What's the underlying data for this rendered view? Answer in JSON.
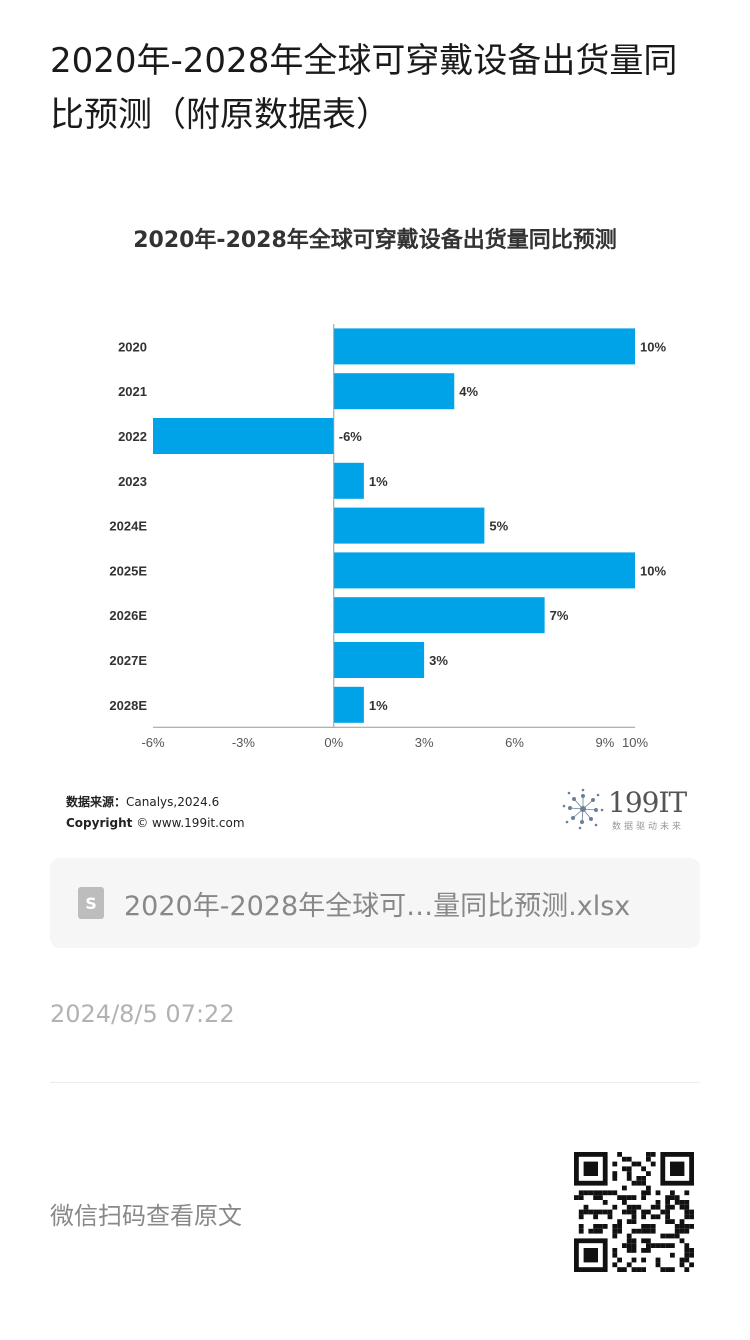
{
  "page_title": "2020年-2028年全球可穿戴设备出货量同比预测（附原数据表）",
  "chart": {
    "title": "2020年-2028年全球可穿戴设备出货量同比预测",
    "source_label": "数据来源：",
    "source_value": "Canalys,2024.6",
    "copyright_label": "Copyright",
    "copyright_value": "© www.199it.com",
    "bar_color": "#00A2E8"
  },
  "chart_data": {
    "type": "bar",
    "orientation": "horizontal",
    "title": "2020年-2028年全球可穿戴设备出货量同比预测",
    "categories": [
      "2020",
      "2021",
      "2022",
      "2023",
      "2024E",
      "2025E",
      "2026E",
      "2027E",
      "2028E"
    ],
    "values": [
      10,
      4,
      -6,
      1,
      5,
      10,
      7,
      3,
      1
    ],
    "value_labels": [
      "10%",
      "4%",
      "-6%",
      "1%",
      "5%",
      "10%",
      "7%",
      "3%",
      "1%"
    ],
    "x_ticks": [
      -6,
      -3,
      0,
      3,
      6,
      9,
      10
    ],
    "x_tick_labels": [
      "-6%",
      "-3%",
      "0%",
      "3%",
      "6%",
      "9%",
      "10%"
    ],
    "xlim": [
      -6,
      10
    ],
    "grid": false
  },
  "logo": {
    "text": "199IT",
    "subtitle": "数据驱动未来"
  },
  "file": {
    "icon": "S",
    "name": "2020年-2028年全球可…量同比预测.xlsx"
  },
  "timestamp": "2024/8/5 07:22",
  "wechat_hint": "微信扫码查看原文"
}
